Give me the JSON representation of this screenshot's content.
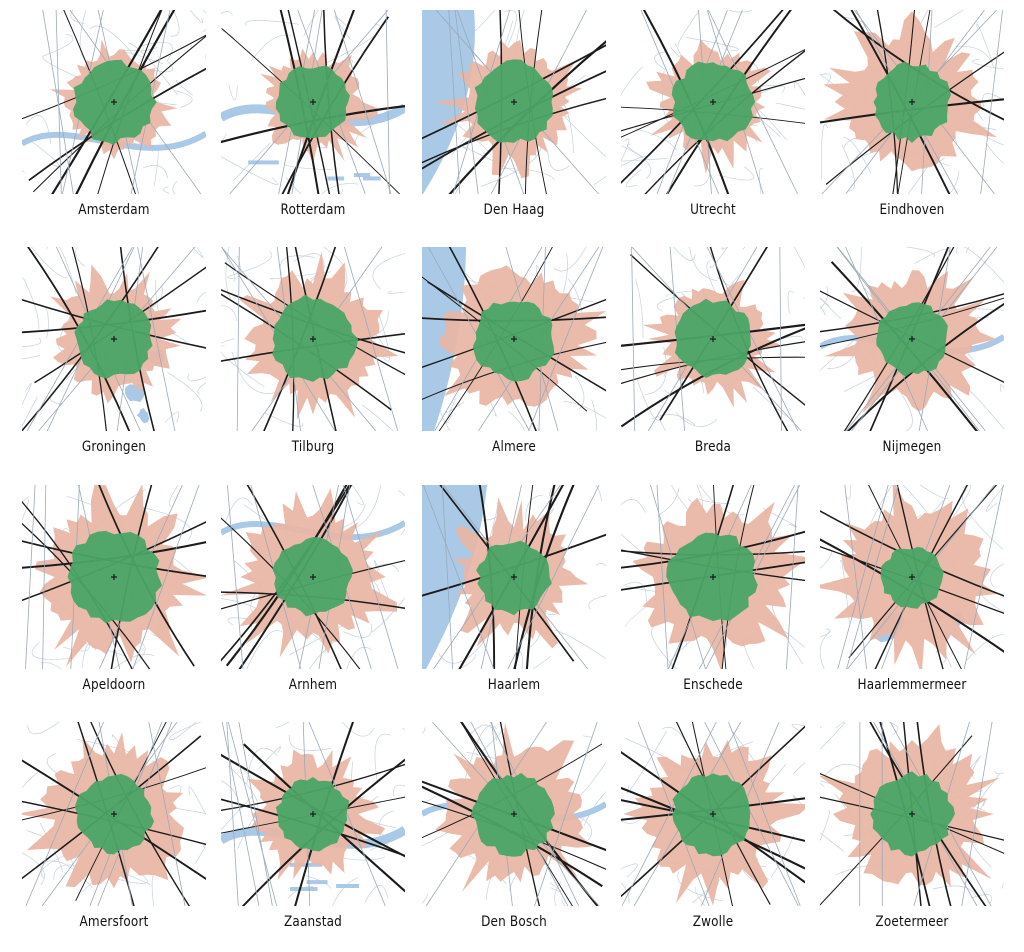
{
  "colors": {
    "reach_inner": "#4aa466",
    "reach_outer": "#e8b5a4",
    "water": "#a9c9e6",
    "road_major": "#1b1b1b",
    "road_minor": "#9aaab8",
    "road_thin": "#c6d2dd"
  },
  "cities": [
    {
      "name": "Amsterdam",
      "water_kind": "river",
      "r_in": 40,
      "r_out": 50,
      "seed": 1
    },
    {
      "name": "Rotterdam",
      "water_kind": "harbour",
      "r_in": 36,
      "r_out": 48,
      "seed": 2
    },
    {
      "name": "Den Haag",
      "water_kind": "sea",
      "r_in": 40,
      "r_out": 58,
      "seed": 3
    },
    {
      "name": "Utrecht",
      "water_kind": "none",
      "r_in": 40,
      "r_out": 52,
      "seed": 4
    },
    {
      "name": "Eindhoven",
      "water_kind": "none",
      "r_in": 38,
      "r_out": 66,
      "seed": 5
    },
    {
      "name": "Groningen",
      "water_kind": "lakes",
      "r_in": 38,
      "r_out": 58,
      "seed": 6
    },
    {
      "name": "Tilburg",
      "water_kind": "none",
      "r_in": 42,
      "r_out": 64,
      "seed": 7
    },
    {
      "name": "Almere",
      "water_kind": "sea",
      "r_in": 40,
      "r_out": 70,
      "seed": 8
    },
    {
      "name": "Breda",
      "water_kind": "none",
      "r_in": 38,
      "r_out": 52,
      "seed": 9
    },
    {
      "name": "Nijmegen",
      "water_kind": "river",
      "r_in": 36,
      "r_out": 64,
      "seed": 10
    },
    {
      "name": "Apeldoorn",
      "water_kind": "none",
      "r_in": 46,
      "r_out": 74,
      "seed": 11
    },
    {
      "name": "Arnhem",
      "water_kind": "river",
      "r_in": 38,
      "r_out": 68,
      "seed": 12
    },
    {
      "name": "Haarlem",
      "water_kind": "sea",
      "r_in": 36,
      "r_out": 58,
      "seed": 13
    },
    {
      "name": "Enschede",
      "water_kind": "none",
      "r_in": 44,
      "r_out": 74,
      "seed": 14
    },
    {
      "name": "Haarlemmermeer",
      "water_kind": "lakes",
      "r_in": 30,
      "r_out": 72,
      "seed": 15
    },
    {
      "name": "Amersfoort",
      "water_kind": "none",
      "r_in": 38,
      "r_out": 70,
      "seed": 16
    },
    {
      "name": "Zaanstad",
      "water_kind": "harbour",
      "r_in": 36,
      "r_out": 58,
      "seed": 17
    },
    {
      "name": "Den Bosch",
      "water_kind": "river",
      "r_in": 40,
      "r_out": 68,
      "seed": 18
    },
    {
      "name": "Zwolle",
      "water_kind": "none",
      "r_in": 40,
      "r_out": 72,
      "seed": 19
    },
    {
      "name": "Zoetermeer",
      "water_kind": "none",
      "r_in": 40,
      "r_out": 74,
      "seed": 20
    }
  ]
}
